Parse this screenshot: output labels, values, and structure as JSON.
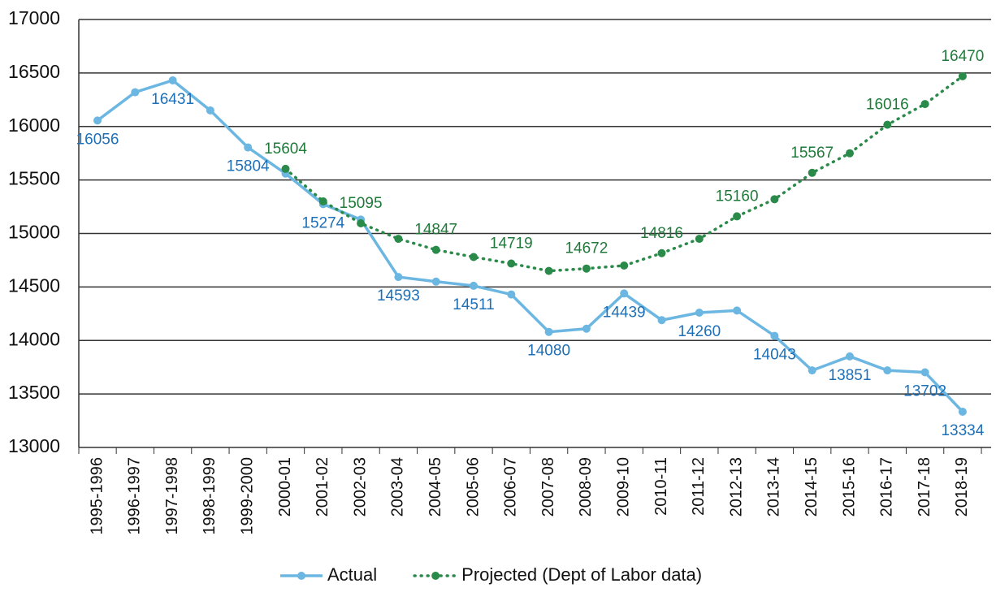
{
  "chart_data": {
    "type": "line",
    "categories": [
      "1995-1996",
      "1996-1997",
      "1997-1998",
      "1998-1999",
      "1999-2000",
      "2000-01",
      "2001-02",
      "2002-03",
      "2003-04",
      "2004-05",
      "2005-06",
      "2006-07",
      "2007-08",
      "2008-09",
      "2009-10",
      "2010-11",
      "2011-12",
      "2012-13",
      "2013-14",
      "2014-15",
      "2015-16",
      "2016-17",
      "2017-18",
      "2018-19"
    ],
    "series": [
      {
        "name": "Actual",
        "color": "#6cb6e2",
        "label_color": "#1d6fb8",
        "values": [
          16056,
          16320,
          16431,
          16150,
          15804,
          15560,
          15274,
          15130,
          14593,
          14550,
          14511,
          14430,
          14080,
          14110,
          14439,
          14190,
          14260,
          14280,
          14043,
          13720,
          13851,
          13720,
          13702,
          13334
        ],
        "value_labels": [
          "16056",
          null,
          "16431",
          null,
          "15804",
          null,
          "15274",
          null,
          "14593",
          null,
          "14511",
          null,
          "14080",
          null,
          "14439",
          null,
          "14260",
          null,
          "14043",
          null,
          "13851",
          null,
          "13702",
          "13334"
        ]
      },
      {
        "name": "Projected (Dept of Labor data)",
        "color": "#2a8a4a",
        "label_color": "#1f7a3a",
        "dash": "dotted",
        "values": [
          null,
          null,
          null,
          null,
          null,
          15604,
          15300,
          15095,
          14950,
          14847,
          14780,
          14719,
          14650,
          14672,
          14700,
          14816,
          14950,
          15160,
          15320,
          15567,
          15750,
          16016,
          16210,
          16470
        ],
        "value_labels": [
          null,
          null,
          null,
          null,
          null,
          "15604",
          null,
          "15095",
          null,
          "14847",
          null,
          "14719",
          null,
          "14672",
          null,
          "14816",
          null,
          "15160",
          null,
          "15567",
          null,
          "16016",
          null,
          "16470"
        ]
      }
    ],
    "ylim": [
      13000,
      17000
    ],
    "yticks": [
      13000,
      13500,
      14000,
      14500,
      15000,
      15500,
      16000,
      16500,
      17000
    ],
    "grid": true,
    "legend": "bottom"
  }
}
